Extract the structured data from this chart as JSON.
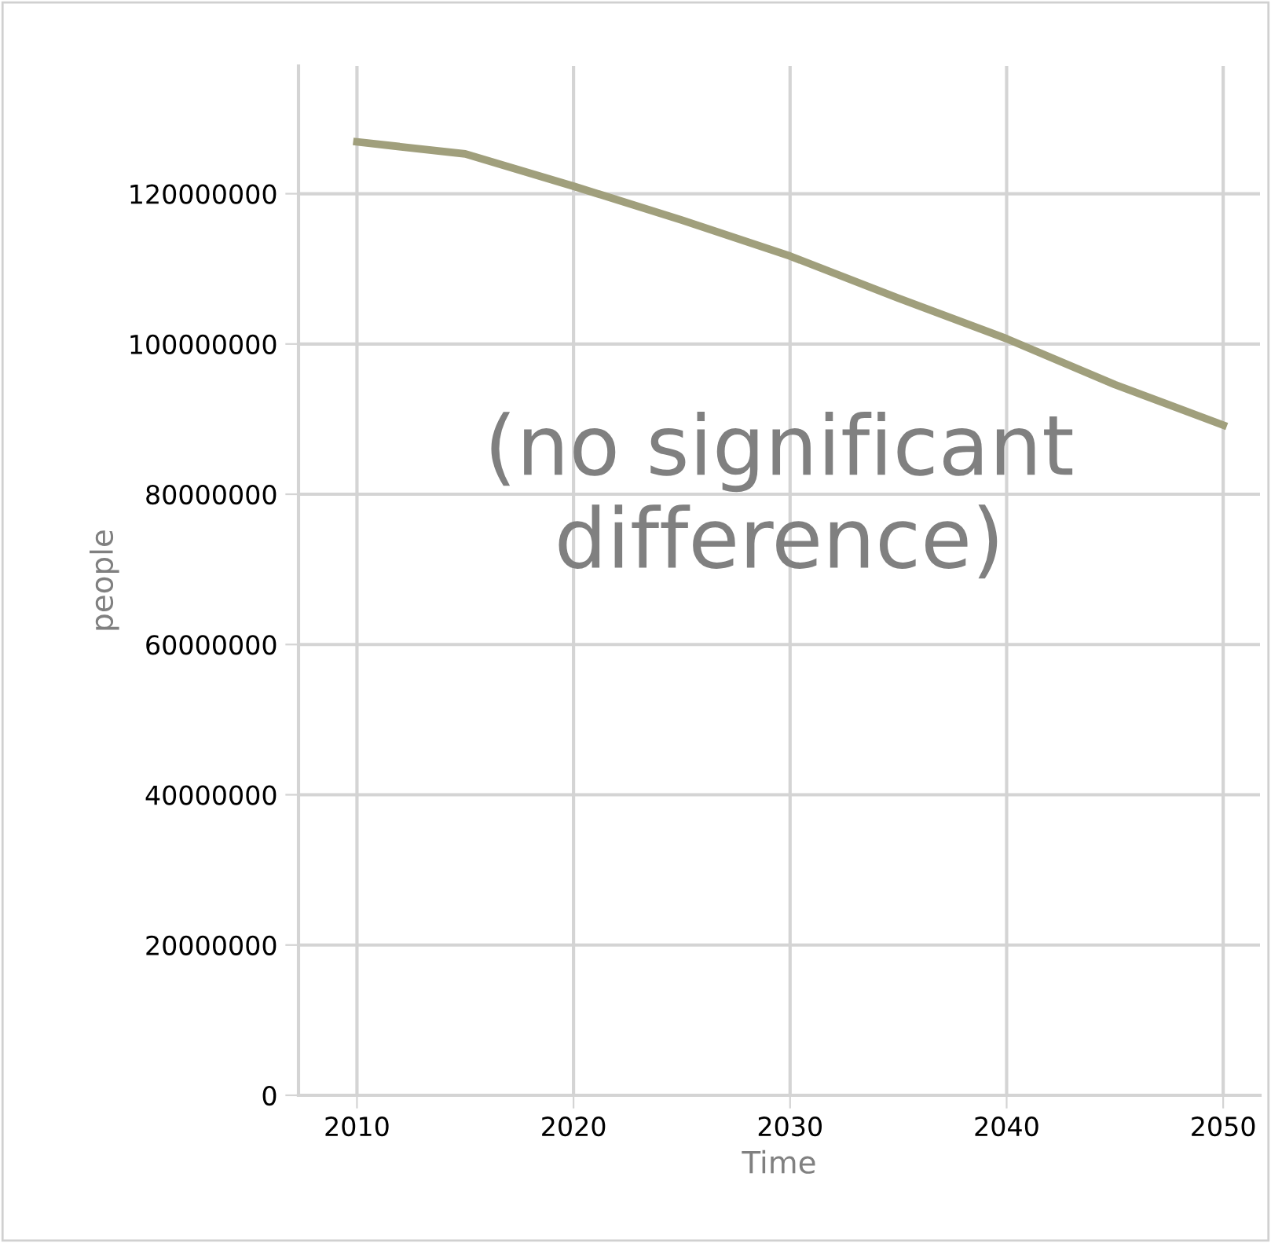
{
  "chart_data": {
    "type": "line",
    "xlabel": "Time",
    "ylabel": "people",
    "x": [
      2010,
      2015,
      2020,
      2025,
      2030,
      2035,
      2040,
      2045,
      2050
    ],
    "series": [
      {
        "color": "#a09f7c",
        "values": [
          126900000,
          125300000,
          121000000,
          116500000,
          111700000,
          106100000,
          100700000,
          94600000,
          89200000
        ]
      }
    ],
    "xlim": [
      2007.3,
      2051.7
    ],
    "ylim": [
      0,
      137000000
    ],
    "xticks": [
      2010,
      2020,
      2030,
      2040,
      2050
    ],
    "yticks": [
      0,
      20000000,
      40000000,
      60000000,
      80000000,
      100000000,
      120000000
    ],
    "grid": true,
    "line_style": "solid",
    "marker": "none",
    "annotations": [
      "(no significant difference)"
    ]
  }
}
